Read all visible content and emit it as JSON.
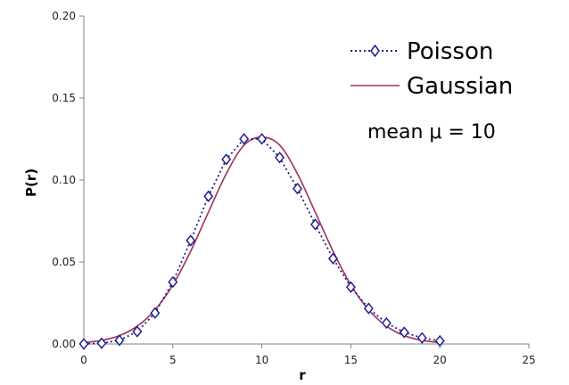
{
  "chart_data": {
    "type": "line",
    "title": "",
    "xlabel": "r",
    "ylabel": "P(r)",
    "xlim": [
      0,
      25
    ],
    "ylim": [
      0,
      0.2
    ],
    "xticks": [
      "0",
      "5",
      "10",
      "15",
      "20",
      "25"
    ],
    "yticks": [
      "0.00",
      "0.05",
      "0.10",
      "0.15",
      "0.20"
    ],
    "grid": false,
    "legend_position": "top-right",
    "annotation": "mean μ = 10",
    "series": [
      {
        "name": "Poisson",
        "style": "dotted with diamond markers",
        "color": "#1f1f8f",
        "x": [
          0,
          1,
          2,
          3,
          4,
          5,
          6,
          7,
          8,
          9,
          10,
          11,
          12,
          13,
          14,
          15,
          16,
          17,
          18,
          19,
          20
        ],
        "y": [
          4.54e-05,
          0.000454,
          0.00227,
          0.00757,
          0.0189,
          0.0378,
          0.0631,
          0.0901,
          0.1126,
          0.1251,
          0.1251,
          0.1137,
          0.0948,
          0.0729,
          0.0521,
          0.0347,
          0.0217,
          0.0128,
          0.0071,
          0.0037,
          0.0019
        ]
      },
      {
        "name": "Gaussian",
        "style": "solid",
        "color": "#a0305a",
        "x": [
          0,
          1,
          2,
          3,
          4,
          5,
          6,
          7,
          8,
          9,
          10,
          11,
          12,
          13,
          14,
          15,
          16,
          17,
          18,
          19,
          20
        ],
        "y": [
          0.00085,
          0.0022,
          0.0051,
          0.0109,
          0.0208,
          0.036,
          0.0566,
          0.0804,
          0.1038,
          0.1213,
          0.1262,
          0.1213,
          0.1038,
          0.0804,
          0.0566,
          0.036,
          0.0208,
          0.0109,
          0.0051,
          0.0022,
          0.00085
        ]
      }
    ]
  }
}
